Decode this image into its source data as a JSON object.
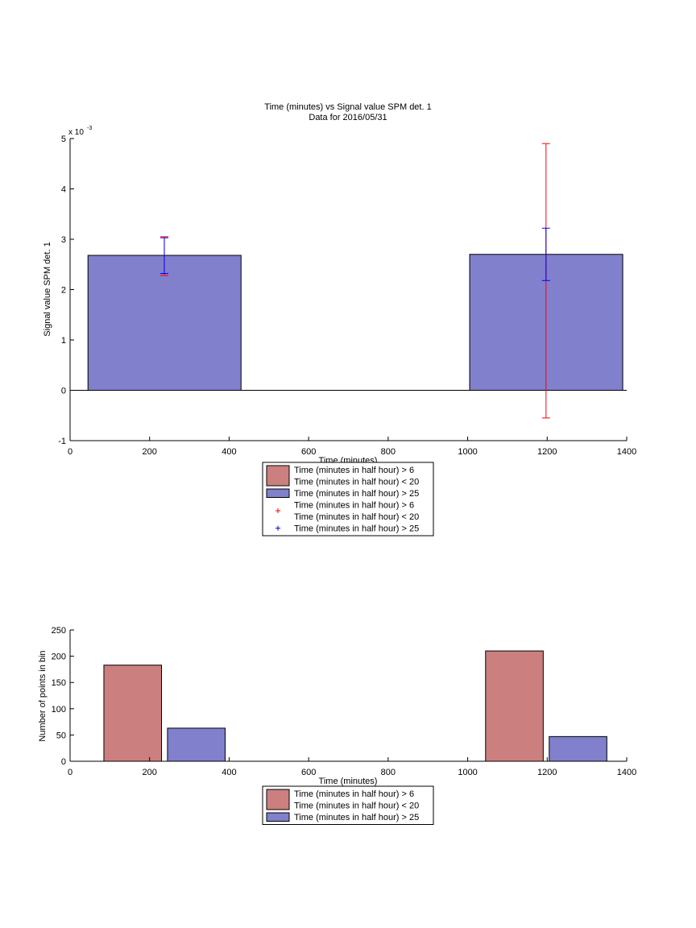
{
  "chart_data": [
    {
      "type": "bar",
      "title": "Time (minutes) vs Signal value SPM det. 1",
      "subtitle": "Data for 2016/05/31",
      "xlabel": "Time (minutes)",
      "ylabel": "Signal value SPM det. 1",
      "y_exponent_label": "x 10",
      "y_exponent_value": "-3",
      "xlim": [
        0,
        1400
      ],
      "ylim": [
        -1,
        5
      ],
      "x_ticks": [
        "0",
        "200",
        "400",
        "600",
        "800",
        "1000",
        "1200",
        "1400"
      ],
      "y_ticks": [
        "-1",
        "0",
        "1",
        "2",
        "3",
        "4",
        "5"
      ],
      "bars": [
        {
          "x_start": 45,
          "x_end": 430,
          "value": 2.68
        },
        {
          "x_start": 1005,
          "x_end": 1390,
          "value": 2.7
        }
      ],
      "error_bars": [
        {
          "series": "Time (minutes in half hour) > 6 Time (minutes in half hour) < 20",
          "color": "#ff0000",
          "x": 237,
          "low": 2.28,
          "high": 3.05
        },
        {
          "series": "Time (minutes in half hour) > 25",
          "color": "#0000ff",
          "x": 237,
          "low": 2.32,
          "high": 3.03
        },
        {
          "series": "Time (minutes in half hour) > 6 Time (minutes in half hour) < 20",
          "color": "#ff0000",
          "x": 1197,
          "low": -0.55,
          "high": 4.9
        },
        {
          "series": "Time (minutes in half hour) > 25",
          "color": "#0000ff",
          "x": 1197,
          "low": 2.18,
          "high": 3.22
        }
      ],
      "legend": [
        {
          "kind": "patch",
          "color": "#cc7f7f",
          "lines": [
            "Time (minutes in half hour) > 6",
            "Time (minutes in half hour) < 20"
          ]
        },
        {
          "kind": "patch",
          "color": "#8080cc",
          "lines": [
            "Time (minutes in half hour) > 25"
          ]
        },
        {
          "kind": "marker",
          "color": "#ff0000",
          "lines": [
            "Time (minutes in half hour) > 6",
            "Time (minutes in half hour) < 20"
          ]
        },
        {
          "kind": "marker",
          "color": "#0000ff",
          "lines": [
            "Time (minutes in half hour) > 25"
          ]
        }
      ],
      "legend_placement": "below"
    },
    {
      "type": "bar",
      "xlabel": "Time (minutes)",
      "ylabel": "Number of points in bin",
      "xlim": [
        0,
        1400
      ],
      "ylim": [
        0,
        250
      ],
      "x_ticks": [
        "0",
        "200",
        "400",
        "600",
        "800",
        "1000",
        "1200",
        "1400"
      ],
      "y_ticks": [
        "0",
        "50",
        "100",
        "150",
        "200",
        "250"
      ],
      "bars": [
        {
          "series": "Time (minutes in half hour) > 6 Time (minutes in half hour) < 20",
          "color": "#cc7f7f",
          "x_start": 85,
          "x_end": 230,
          "value": 183
        },
        {
          "series": "Time (minutes in half hour) > 25",
          "color": "#8080cc",
          "x_start": 245,
          "x_end": 390,
          "value": 63
        },
        {
          "series": "Time (minutes in half hour) > 6 Time (minutes in half hour) < 20",
          "color": "#cc7f7f",
          "x_start": 1045,
          "x_end": 1190,
          "value": 210
        },
        {
          "series": "Time (minutes in half hour) > 25",
          "color": "#8080cc",
          "x_start": 1205,
          "x_end": 1350,
          "value": 47
        }
      ],
      "legend": [
        {
          "kind": "patch",
          "color": "#cc7f7f",
          "lines": [
            "Time (minutes in half hour) > 6",
            "Time (minutes in half hour) < 20"
          ]
        },
        {
          "kind": "patch",
          "color": "#8080cc",
          "lines": [
            "Time (minutes in half hour) > 25"
          ]
        }
      ],
      "legend_placement": "below"
    }
  ]
}
